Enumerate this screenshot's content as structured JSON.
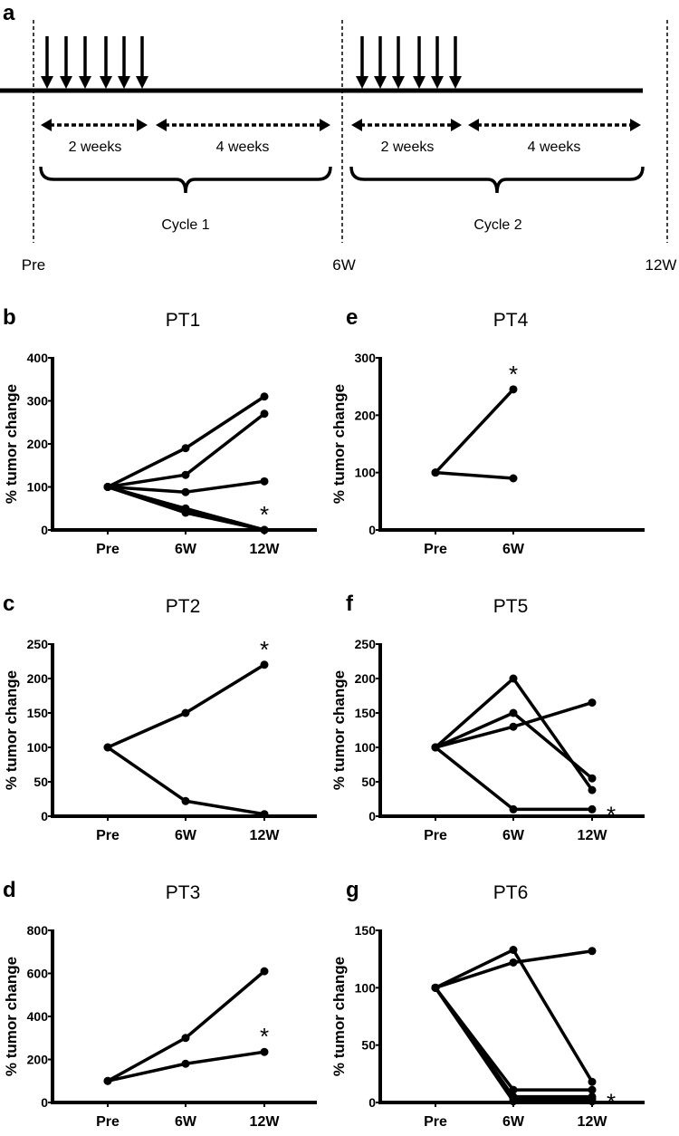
{
  "figure": {
    "ink_color": "#000000",
    "background": "#ffffff"
  },
  "schedule": {
    "letter": "a",
    "arrows_per_cycle": 6,
    "interval_short": "2 weeks",
    "interval_long": "4 weeks",
    "cycles": [
      "Cycle 1",
      "Cycle 2"
    ],
    "timepoints": [
      "Pre",
      "6W",
      "12W"
    ]
  },
  "chart_data": [
    {
      "letter": "b",
      "type": "line",
      "title": "PT1",
      "ylabel": "% tumor change",
      "xlabel": "",
      "categories": [
        "Pre",
        "6W",
        "12W"
      ],
      "ylim": [
        0,
        400
      ],
      "yticks": [
        0,
        100,
        200,
        300,
        400
      ],
      "series": [
        [
          100,
          190,
          310
        ],
        [
          100,
          128,
          270
        ],
        [
          100,
          88,
          113
        ],
        [
          100,
          50,
          0
        ],
        [
          100,
          45,
          0
        ],
        [
          100,
          40,
          0
        ]
      ],
      "annotation": {
        "text": "*",
        "category": "12W",
        "value": 0,
        "placement": "above"
      }
    },
    {
      "letter": "c",
      "type": "line",
      "title": "PT2",
      "ylabel": "% tumor change",
      "xlabel": "",
      "categories": [
        "Pre",
        "6W",
        "12W"
      ],
      "ylim": [
        0,
        250
      ],
      "yticks": [
        0,
        50,
        100,
        150,
        200,
        250
      ],
      "series": [
        [
          100,
          150,
          220
        ],
        [
          100,
          22,
          3
        ]
      ],
      "annotation": {
        "text": "*",
        "category": "12W",
        "value": 220,
        "placement": "above"
      }
    },
    {
      "letter": "d",
      "type": "line",
      "title": "PT3",
      "ylabel": "% tumor change",
      "xlabel": "",
      "categories": [
        "Pre",
        "6W",
        "12W"
      ],
      "ylim": [
        0,
        800
      ],
      "yticks": [
        0,
        200,
        400,
        600,
        800
      ],
      "series": [
        [
          100,
          300,
          610
        ],
        [
          100,
          180,
          235
        ]
      ],
      "annotation": {
        "text": "*",
        "category": "12W",
        "value": 235,
        "placement": "above"
      }
    },
    {
      "letter": "e",
      "type": "line",
      "title": "PT4",
      "ylabel": "% tumor change",
      "xlabel": "",
      "categories": [
        "Pre",
        "6W"
      ],
      "ylim": [
        0,
        300
      ],
      "yticks": [
        0,
        100,
        200,
        300
      ],
      "series": [
        [
          100,
          245
        ],
        [
          100,
          90
        ]
      ],
      "annotation": {
        "text": "*",
        "category": "6W",
        "value": 245,
        "placement": "above"
      }
    },
    {
      "letter": "f",
      "type": "line",
      "title": "PT5",
      "ylabel": "% tumor change",
      "xlabel": "",
      "categories": [
        "Pre",
        "6W",
        "12W"
      ],
      "ylim": [
        0,
        250
      ],
      "yticks": [
        0,
        50,
        100,
        150,
        200,
        250
      ],
      "series": [
        [
          100,
          200,
          38
        ],
        [
          100,
          150,
          55
        ],
        [
          100,
          130,
          165
        ],
        [
          100,
          10,
          10
        ]
      ],
      "annotation": {
        "text": "*",
        "category": "12W",
        "value": 10,
        "placement": "right"
      }
    },
    {
      "letter": "g",
      "type": "line",
      "title": "PT6",
      "ylabel": "% tumor change",
      "xlabel": "",
      "categories": [
        "Pre",
        "6W",
        "12W"
      ],
      "ylim": [
        0,
        150
      ],
      "yticks": [
        0,
        50,
        100,
        150
      ],
      "series": [
        [
          100,
          133,
          18
        ],
        [
          100,
          122,
          132
        ],
        [
          100,
          11,
          11
        ],
        [
          100,
          5,
          5
        ],
        [
          100,
          3,
          3
        ],
        [
          100,
          1,
          1
        ]
      ],
      "annotation": {
        "text": "*",
        "category": "12W",
        "value": 5,
        "placement": "right"
      }
    }
  ]
}
